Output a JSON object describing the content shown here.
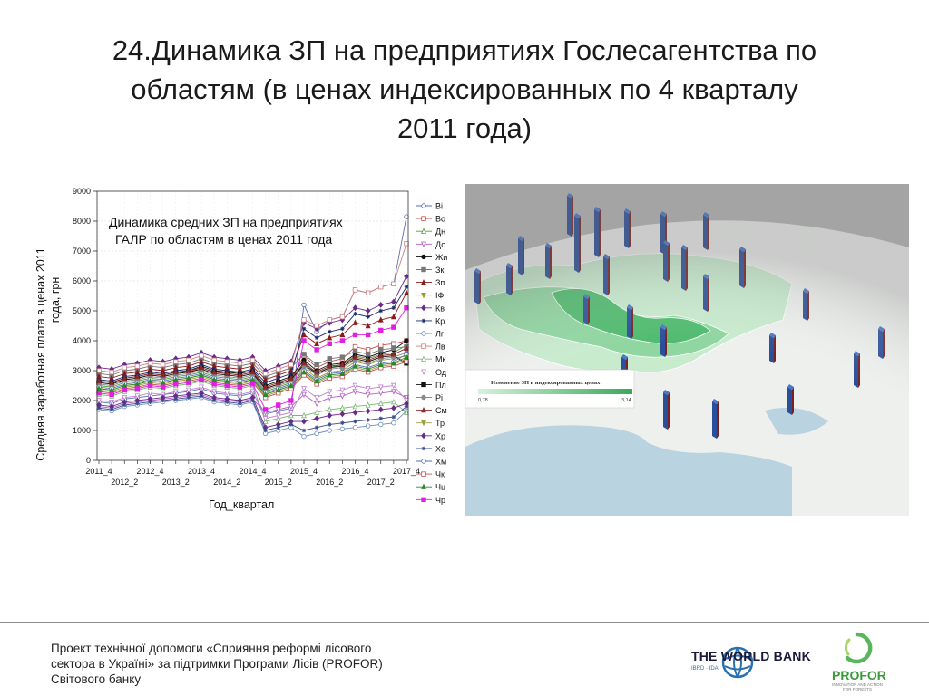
{
  "slide": {
    "title_line1": "24.Динамика ЗП на предприятиях Гослесагентства по",
    "title_line2": "областям (в ценах индексированных по 4 кварталу",
    "title_line3": "2011 года)",
    "footer_line1": "Проект технічної допомоги «Сприяння реформі лісового",
    "footer_line2": "сектора в Україні» за підтримки Програми Лісів (PROFOR)",
    "footer_line3": "Світового банку",
    "wb_name": "THE WORLD BANK",
    "wb_sub": "IBRD · IDA",
    "profor_name": "PROFOR",
    "profor_sub": "INNOVATION AND ACTION FOR FORESTS"
  },
  "chart_data": {
    "type": "line",
    "title_line1": "Динамика средних ЗП на предприятиях",
    "title_line2": "ГАЛР по областям в ценах 2011 года",
    "xlabel": "Год_квартал",
    "ylabel_line1": "Средняя заработная плата в ценах 2011",
    "ylabel_line2": "года, грн",
    "ylim": [
      0,
      9000
    ],
    "yticks": [
      0,
      1000,
      2000,
      3000,
      4000,
      5000,
      6000,
      7000,
      8000,
      9000
    ],
    "x_labels_upper": [
      "2011_4",
      "2012_4",
      "2013_4",
      "2014_4",
      "2015_4",
      "2016_4",
      "2017_4"
    ],
    "x_labels_lower": [
      "2012_2",
      "2013_2",
      "2014_2",
      "2015_2",
      "2016_2",
      "2017_2"
    ],
    "x": [
      "2011_4",
      "2012_1",
      "2012_2",
      "2012_3",
      "2012_4",
      "2013_1",
      "2013_2",
      "2013_3",
      "2013_4",
      "2014_1",
      "2014_2",
      "2014_3",
      "2014_4",
      "2015_1",
      "2015_2",
      "2015_3",
      "2015_4",
      "2016_1",
      "2016_2",
      "2016_3",
      "2016_4",
      "2017_1",
      "2017_2",
      "2017_3",
      "2017_4"
    ],
    "legend_position": "right",
    "series": [
      {
        "name": "Ві",
        "color": "#5b6fb5",
        "marker": "circle-open",
        "values": [
          1950,
          1900,
          2050,
          2100,
          2150,
          2200,
          2250,
          2300,
          2400,
          2250,
          2200,
          2150,
          2250,
          1550,
          1650,
          1750,
          5200,
          4300,
          4700,
          4800,
          5700,
          5600,
          5800,
          5900,
          8150
        ]
      },
      {
        "name": "Во",
        "color": "#c0504d",
        "marker": "square-open",
        "values": [
          2600,
          2550,
          2700,
          2750,
          2850,
          2800,
          2900,
          2950,
          3100,
          2950,
          2900,
          2850,
          2950,
          2400,
          2550,
          2700,
          3500,
          3100,
          3300,
          3400,
          3800,
          3700,
          3850,
          3900,
          4000
        ]
      },
      {
        "name": "Дн",
        "color": "#4f9a3a",
        "marker": "triangle-open",
        "values": [
          2500,
          2450,
          2600,
          2650,
          2750,
          2700,
          2800,
          2850,
          2950,
          2800,
          2750,
          2700,
          2800,
          2300,
          2450,
          2600,
          3300,
          2900,
          3100,
          3200,
          3500,
          3400,
          3550,
          3600,
          3850
        ]
      },
      {
        "name": "До",
        "color": "#b05fc0",
        "marker": "triangle-down-open",
        "values": [
          1800,
          1750,
          1900,
          1950,
          2000,
          2050,
          2100,
          2150,
          2200,
          2050,
          2000,
          1950,
          2050,
          1600,
          1700,
          1800,
          2200,
          1900,
          2100,
          2150,
          2300,
          2200,
          2250,
          2300,
          2100
        ]
      },
      {
        "name": "Жи",
        "color": "#111111",
        "marker": "circle",
        "values": [
          2650,
          2600,
          2750,
          2800,
          2900,
          2850,
          2950,
          3000,
          3150,
          3000,
          2950,
          2900,
          3000,
          2500,
          2650,
          2800,
          3350,
          3000,
          3200,
          3250,
          3550,
          3450,
          3600,
          3700,
          4000
        ]
      },
      {
        "name": "Зк",
        "color": "#777777",
        "marker": "square",
        "values": [
          2900,
          2850,
          3000,
          3050,
          3150,
          3100,
          3200,
          3250,
          3400,
          3250,
          3200,
          3150,
          3250,
          2800,
          2950,
          3100,
          3550,
          3200,
          3400,
          3450,
          3650,
          3550,
          3700,
          3750,
          3800
        ]
      },
      {
        "name": "Зп",
        "color": "#8b1a1a",
        "marker": "triangle",
        "values": [
          2800,
          2750,
          2900,
          2950,
          3050,
          3000,
          3100,
          3150,
          3300,
          3150,
          3100,
          3050,
          3150,
          2700,
          2850,
          3000,
          4200,
          3900,
          4100,
          4200,
          4600,
          4500,
          4700,
          4800,
          5600
        ]
      },
      {
        "name": "ІФ",
        "color": "#9a9a2a",
        "marker": "triangle-down",
        "values": [
          2400,
          2350,
          2500,
          2550,
          2650,
          2600,
          2700,
          2750,
          2850,
          2700,
          2650,
          2600,
          2700,
          2200,
          2350,
          2500,
          3100,
          2750,
          2950,
          3000,
          3300,
          3200,
          3350,
          3400,
          3500
        ]
      },
      {
        "name": "Кв",
        "color": "#6a2a8a",
        "marker": "diamond",
        "values": [
          3100,
          3050,
          3200,
          3250,
          3350,
          3300,
          3400,
          3450,
          3600,
          3450,
          3400,
          3350,
          3450,
          3000,
          3150,
          3300,
          4600,
          4400,
          4600,
          4700,
          5100,
          5000,
          5200,
          5300,
          6150
        ]
      },
      {
        "name": "Кр",
        "color": "#1a2a6a",
        "marker": "star",
        "values": [
          2700,
          2650,
          2800,
          2850,
          2950,
          2900,
          3000,
          3050,
          3200,
          3050,
          3000,
          2950,
          3050,
          2600,
          2750,
          2900,
          4400,
          4100,
          4300,
          4400,
          4900,
          4800,
          5000,
          5100,
          5800
        ]
      },
      {
        "name": "Лг",
        "color": "#6a8fc0",
        "marker": "circle-open",
        "values": [
          1700,
          1650,
          1800,
          1850,
          1900,
          1950,
          2000,
          2050,
          2100,
          1950,
          1900,
          1850,
          1950,
          900,
          1000,
          1100,
          800,
          900,
          1000,
          1050,
          1100,
          1150,
          1200,
          1250,
          1650
        ]
      },
      {
        "name": "Лв",
        "color": "#d08080",
        "marker": "square-open",
        "values": [
          3000,
          2950,
          3100,
          3150,
          3250,
          3200,
          3300,
          3350,
          3500,
          3350,
          3300,
          3250,
          3350,
          2900,
          3050,
          3200,
          4700,
          4500,
          4700,
          4800,
          5700,
          5600,
          5800,
          5900,
          7250
        ]
      },
      {
        "name": "Мк",
        "color": "#7ab870",
        "marker": "triangle-open",
        "values": [
          2200,
          2150,
          2300,
          2350,
          2450,
          2400,
          2500,
          2550,
          2650,
          2500,
          2450,
          2400,
          2500,
          1300,
          1400,
          1500,
          1500,
          1600,
          1700,
          1750,
          1800,
          1850,
          1900,
          1950,
          1600
        ]
      },
      {
        "name": "Од",
        "color": "#c080d0",
        "marker": "triangle-down-open",
        "values": [
          2000,
          1950,
          2100,
          2150,
          2250,
          2200,
          2300,
          2350,
          2450,
          2300,
          2250,
          2200,
          2300,
          1400,
          1500,
          1600,
          2400,
          2100,
          2300,
          2350,
          2500,
          2400,
          2450,
          2500,
          2000
        ]
      },
      {
        "name": "Пл",
        "color": "#111111",
        "marker": "square",
        "values": [
          2600,
          2550,
          2700,
          2750,
          2850,
          2800,
          2900,
          2950,
          3050,
          2900,
          2850,
          2800,
          2900,
          2400,
          2550,
          2700,
          3200,
          2900,
          3100,
          3150,
          3400,
          3300,
          3450,
          3500,
          3250
        ]
      },
      {
        "name": "Рі",
        "color": "#8a8a8a",
        "marker": "circle",
        "values": [
          2550,
          2500,
          2650,
          2700,
          2800,
          2750,
          2850,
          2900,
          3000,
          2850,
          2800,
          2750,
          2850,
          2350,
          2500,
          2650,
          3150,
          2850,
          3050,
          3100,
          3350,
          3250,
          3400,
          3450,
          3600
        ]
      },
      {
        "name": "См",
        "color": "#8b2a2a",
        "marker": "triangle",
        "values": [
          2650,
          2600,
          2750,
          2800,
          2900,
          2850,
          2950,
          3000,
          3100,
          2950,
          2900,
          2850,
          2950,
          2450,
          2600,
          2750,
          3250,
          2950,
          3150,
          3200,
          3450,
          3350,
          3500,
          3550,
          3750
        ]
      },
      {
        "name": "Тр",
        "color": "#a0a040",
        "marker": "triangle-down",
        "values": [
          2350,
          2300,
          2450,
          2500,
          2600,
          2550,
          2650,
          2700,
          2800,
          2650,
          2600,
          2550,
          2650,
          2150,
          2300,
          2450,
          2900,
          2600,
          2800,
          2850,
          3100,
          3000,
          3150,
          3200,
          3400
        ]
      },
      {
        "name": "Хр",
        "color": "#6a2a8a",
        "marker": "diamond",
        "values": [
          1850,
          1800,
          1950,
          2000,
          2050,
          2100,
          2150,
          2200,
          2250,
          2100,
          2050,
          2000,
          2100,
          1100,
          1200,
          1300,
          1300,
          1400,
          1500,
          1550,
          1600,
          1650,
          1700,
          1750,
          1900
        ]
      },
      {
        "name": "Хе",
        "color": "#3a4a8a",
        "marker": "star",
        "values": [
          1750,
          1700,
          1850,
          1900,
          1950,
          2000,
          2050,
          2100,
          2150,
          2000,
          1950,
          1900,
          2000,
          1000,
          1100,
          1200,
          1000,
          1100,
          1200,
          1250,
          1300,
          1350,
          1400,
          1450,
          1800
        ]
      },
      {
        "name": "Хм",
        "color": "#5b6fb5",
        "marker": "circle-open",
        "values": [
          2450,
          2400,
          2550,
          2600,
          2700,
          2650,
          2750,
          2800,
          2900,
          2750,
          2700,
          2650,
          2750,
          2250,
          2400,
          2550,
          3000,
          2700,
          2900,
          2950,
          3200,
          3100,
          3250,
          3300,
          3550
        ]
      },
      {
        "name": "Чк",
        "color": "#c0504d",
        "marker": "square-open",
        "values": [
          2300,
          2250,
          2400,
          2450,
          2550,
          2500,
          2600,
          2650,
          2750,
          2600,
          2550,
          2500,
          2600,
          2100,
          2250,
          2400,
          2850,
          2550,
          2750,
          2800,
          3050,
          2950,
          3100,
          3150,
          3300
        ]
      },
      {
        "name": "Чц",
        "color": "#2a8a2a",
        "marker": "triangle",
        "values": [
          2400,
          2350,
          2500,
          2550,
          2650,
          2600,
          2700,
          2750,
          2850,
          2700,
          2650,
          2600,
          2700,
          2200,
          2350,
          2500,
          2950,
          2650,
          2850,
          2900,
          3150,
          3050,
          3200,
          3250,
          3450
        ]
      },
      {
        "name": "Чр",
        "color": "#e020e0",
        "marker": "square",
        "values": [
          2250,
          2200,
          2350,
          2400,
          2500,
          2450,
          2550,
          2600,
          2700,
          2550,
          2500,
          2450,
          2550,
          1700,
          1850,
          2000,
          4000,
          3700,
          3900,
          4000,
          4200,
          4200,
          4350,
          4450,
          5100
        ]
      }
    ]
  },
  "map": {
    "legend_title": "Изменение ЗП в индексированных ценах",
    "legend_min": "0,78",
    "legend_max": "3,14",
    "colors": {
      "sea": "#b9d3e0",
      "land": "#eef0ee",
      "region_light": "#c8ebce",
      "region_mid": "#8fd6a0",
      "region_dark": "#4fbb6e",
      "bar": "#2a4f9a",
      "bar_side": "#7a2020",
      "globe_shadow": "#3a3a3a"
    }
  }
}
